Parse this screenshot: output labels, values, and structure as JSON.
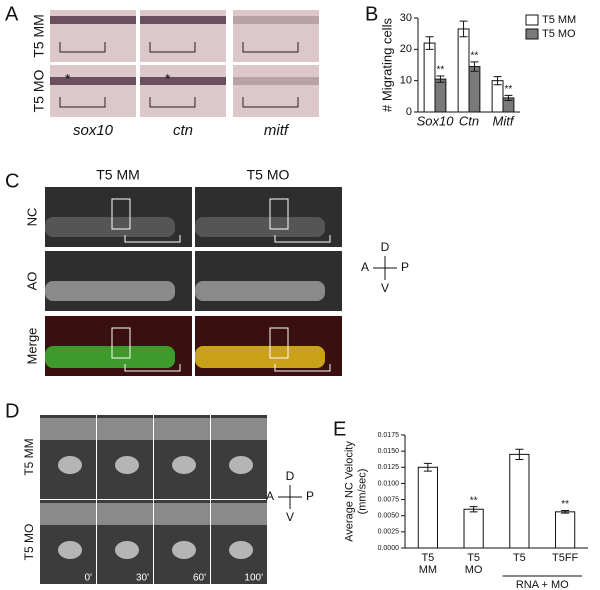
{
  "panels": {
    "A": {
      "label": "A",
      "rows": [
        "T5 MM",
        "T5 MO"
      ],
      "columns": [
        "sox10",
        "ctn",
        "mitf"
      ],
      "marks": [
        "*",
        "*"
      ]
    },
    "B": {
      "label": "B"
    },
    "C": {
      "label": "C",
      "columns": [
        "T5 MM",
        "T5 MO"
      ],
      "rows": [
        "NC",
        "AO",
        "Merge"
      ],
      "compass": {
        "d": "D",
        "a": "A",
        "p": "P",
        "v": "V"
      }
    },
    "D": {
      "label": "D",
      "rows": [
        "T5 MM",
        "T5 MO"
      ],
      "times": [
        "0'",
        "30'",
        "60'",
        "100'"
      ],
      "compass": {
        "d": "D",
        "a": "A",
        "p": "P",
        "v": "V"
      }
    },
    "E": {
      "label": "E"
    }
  },
  "chart_data": [
    {
      "type": "bar",
      "ylabel": [
        "# Migrating cells"
      ],
      "categories": [
        [
          "Sox10"
        ],
        [
          "Ctn"
        ],
        [
          "Mitf"
        ]
      ],
      "italic_categories": true,
      "series": [
        {
          "name": "T5 MM",
          "color": "#ffffff",
          "values": [
            22,
            26.5,
            10
          ],
          "errors": [
            2,
            2.5,
            1.3
          ]
        },
        {
          "name": "T5 MO",
          "color": "#7a7a7a",
          "values": [
            10.5,
            14.5,
            4.5
          ],
          "errors": [
            1,
            1.5,
            0.8
          ],
          "annotations": [
            "**",
            "**",
            "**"
          ]
        }
      ],
      "ylim": [
        0,
        30
      ],
      "yticks": [
        0,
        10,
        20,
        30
      ],
      "legend": "upper right"
    },
    {
      "type": "bar",
      "ylabel": [
        "Average NC Velocity",
        "(mm/sec)"
      ],
      "categories": [
        [
          "T5",
          "MM"
        ],
        [
          "T5",
          "MO"
        ],
        [
          "T5"
        ],
        [
          "T5FF"
        ]
      ],
      "groups": [
        {
          "label": "RNA + MO",
          "categories": [
            2,
            3
          ]
        }
      ],
      "series": [
        {
          "color": "#ffffff",
          "values": [
            0.0125,
            0.006,
            0.0145,
            0.0056
          ],
          "errors": [
            0.0006,
            0.0004,
            0.0008,
            0.0002
          ],
          "annotations": [
            null,
            "**",
            null,
            "**"
          ]
        }
      ],
      "ylim": [
        0,
        0.0175
      ],
      "yticks": [
        {
          "value": 0,
          "label": "0.0000"
        },
        {
          "value": 0.0025,
          "label": "0.0025"
        },
        {
          "value": 0.005,
          "label": "0.0050"
        },
        {
          "value": 0.0075,
          "label": "0.0075"
        },
        {
          "value": 0.01,
          "label": "0.0100"
        },
        {
          "value": 0.0125,
          "label": "0.0125"
        },
        {
          "value": 0.015,
          "label": "0.0150"
        },
        {
          "value": 0.0175,
          "label": "0.0175"
        }
      ]
    }
  ]
}
